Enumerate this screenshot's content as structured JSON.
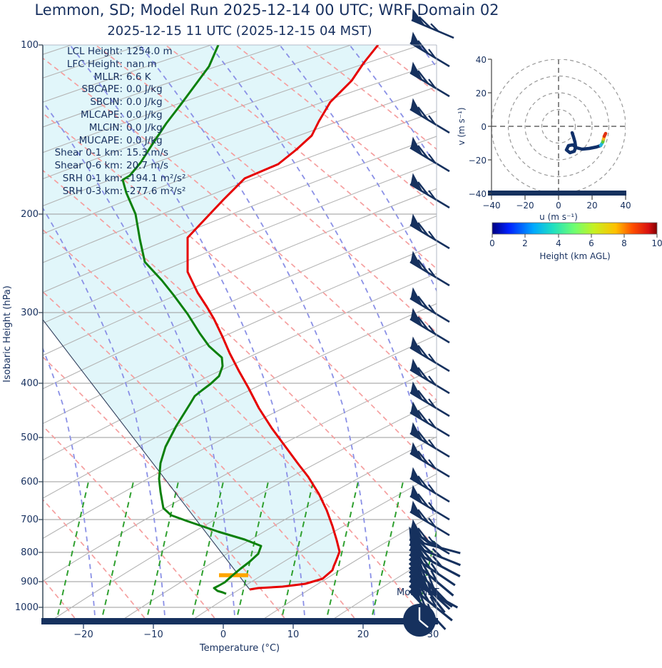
{
  "title": "Lemmon, SD; Model Run 2025-12-14 00 UTC; WRF Domain 02",
  "subtitle": "2025-12-15 11 UTC  (2025-12-15 04 MST)",
  "annotation_bottom_right": "Mon-MST",
  "colors": {
    "text_navy": "#17305f",
    "temperature_line": "#e60000",
    "dewpoint_line": "#0c800c",
    "parcel_line": "#33415e",
    "shaded_region": "#e1f6fa",
    "lcl_marker": "#ffa500",
    "dry_adiabat": "#f59f9f",
    "moist_adiabat": "#8a90e6",
    "mixing_ratio": "#2fa02f",
    "wind_barb": "#16315e"
  },
  "stats": {
    "rows": [
      {
        "label": "LCL Height:",
        "value": "1254.0 m"
      },
      {
        "label": "LFC Height:",
        "value": "nan m"
      },
      {
        "label": "MLLR:",
        "value": "6.6 K"
      },
      {
        "label": "SBCAPE:",
        "value": "0.0 J/kg"
      },
      {
        "label": "SBCIN:",
        "value": "0.0 J/kg"
      },
      {
        "label": "MLCAPE:",
        "value": "0.0 J/kg"
      },
      {
        "label": "MLCIN:",
        "value": "0.0 J/kg"
      },
      {
        "label": "MUCAPE:",
        "value": "0.0 J/kg"
      },
      {
        "label": "Shear 0-1 km:",
        "value": "15.3 m/s"
      },
      {
        "label": "Shear 0-6 km:",
        "value": "20.7 m/s"
      },
      {
        "label": "SRH 0-1 km:",
        "value": "-194.1 m²/s²"
      },
      {
        "label": "SRH 0-3 km:",
        "value": "-277.6 m²/s²"
      }
    ]
  },
  "skewt": {
    "ylabel": "Isobaric Height (hPa)",
    "xlabel": "Temperature (°C)",
    "pressure_ticks": [
      "100",
      "200",
      "300",
      "400",
      "500",
      "600",
      "700",
      "800",
      "900",
      "1000"
    ],
    "temp_ticks": [
      "−20",
      "−10",
      "0",
      "10",
      "20",
      "30"
    ]
  },
  "hodograph": {
    "xlabel": "u (m s⁻¹)",
    "ylabel": "v (m s⁻¹)",
    "xticks": [
      "−40",
      "−20",
      "0",
      "20",
      "40"
    ],
    "yticks": [
      "40",
      "20",
      "0",
      "−20",
      "−40"
    ],
    "colorbar": {
      "ticks": [
        "0",
        "2",
        "4",
        "6",
        "8",
        "10"
      ],
      "label": "Height (km AGL)"
    }
  },
  "chart_data": {
    "type": "skewt-sounding",
    "station": "Lemmon, SD",
    "model_run": "2025-12-14 00 UTC",
    "valid_time": "2025-12-15 11 UTC (2025-12-15 04 MST)",
    "pressure_axis_hPa": [
      100,
      1050
    ],
    "temperature_axis_C": [
      -25,
      30
    ],
    "profile": {
      "pressure_hPa": [
        925,
        900,
        850,
        800,
        700,
        600,
        500,
        400,
        300,
        250,
        200,
        150,
        100
      ],
      "temperature_C": [
        0.5,
        6.0,
        9.0,
        6.5,
        5.0,
        -1.0,
        -10.5,
        -20.0,
        -32.0,
        -39.0,
        -42.0,
        -35.0,
        -34.0
      ],
      "dewpoint_C": [
        -3.0,
        -4.0,
        -2.5,
        -12.0,
        -16.5,
        -23.0,
        -26.0,
        -25.0,
        -35.5,
        -44.0,
        -52.0,
        -57.0,
        -57.0
      ]
    },
    "lcl": {
      "height_m_agl": 1254.0,
      "approx_pressure_hPa": 877
    },
    "wind_note": "Pennant-and-feather barbs (~25 m/s, WSW) at all levels; dense fanned cluster 750-925 hPa",
    "hodograph": {
      "height_km": [
        0,
        0.5,
        1,
        1.5,
        2,
        2.5,
        3,
        4,
        5,
        6,
        7,
        8,
        9,
        10
      ],
      "u_ms": [
        8,
        9,
        10,
        10,
        9.5,
        8.5,
        7,
        9,
        11,
        16,
        22,
        26,
        27,
        28
      ],
      "v_ms": [
        -4,
        -6,
        -9,
        -12,
        -14,
        -15,
        -14,
        -13,
        -13,
        -13,
        -12,
        -11,
        -9,
        -6
      ],
      "axis_range_ms": [
        -40,
        40
      ],
      "ring_interval_ms": 10
    },
    "pixel_paths": {
      "temperature": [
        [
          530,
          63
        ],
        [
          510,
          88
        ],
        [
          493,
          113
        ],
        [
          463,
          143
        ],
        [
          447,
          170
        ],
        [
          437,
          190
        ],
        [
          415,
          210
        ],
        [
          390,
          230
        ],
        [
          343,
          250
        ],
        [
          313,
          280
        ],
        [
          263,
          333
        ],
        [
          263,
          381
        ],
        [
          277,
          410
        ],
        [
          290,
          430
        ],
        [
          300,
          447
        ],
        [
          312,
          472
        ],
        [
          322,
          495
        ],
        [
          335,
          520
        ],
        [
          348,
          543
        ],
        [
          363,
          572
        ],
        [
          381,
          600
        ],
        [
          401,
          627
        ],
        [
          418,
          650
        ],
        [
          432,
          668
        ],
        [
          447,
          692
        ],
        [
          458,
          715
        ],
        [
          466,
          737
        ],
        [
          472,
          757
        ],
        [
          476,
          773
        ],
        [
          471,
          786
        ],
        [
          468,
          793
        ],
        [
          466,
          799
        ],
        [
          452,
          811
        ],
        [
          428,
          818
        ],
        [
          396,
          822
        ],
        [
          362,
          824
        ],
        [
          350,
          826
        ]
      ],
      "dewpoint": [
        [
          306,
          63
        ],
        [
          293,
          93
        ],
        [
          273,
          120
        ],
        [
          253,
          147
        ],
        [
          233,
          173
        ],
        [
          213,
          203
        ],
        [
          197,
          228
        ],
        [
          182,
          246
        ],
        [
          172,
          252
        ],
        [
          177,
          270
        ],
        [
          190,
          300
        ],
        [
          196,
          335
        ],
        [
          203,
          367
        ],
        [
          227,
          393
        ],
        [
          243,
          413
        ],
        [
          263,
          440
        ],
        [
          280,
          467
        ],
        [
          293,
          485
        ],
        [
          303,
          494
        ],
        [
          311,
          501
        ],
        [
          312,
          513
        ],
        [
          307,
          527
        ],
        [
          295,
          538
        ],
        [
          283,
          547
        ],
        [
          273,
          555
        ],
        [
          267,
          565
        ],
        [
          247,
          597
        ],
        [
          232,
          626
        ],
        [
          225,
          649
        ],
        [
          223,
          671
        ],
        [
          225,
          689
        ],
        [
          229,
          712
        ],
        [
          240,
          722
        ],
        [
          262,
          730
        ],
        [
          306,
          745
        ],
        [
          343,
          756
        ],
        [
          366,
          765
        ],
        [
          362,
          776
        ],
        [
          350,
          787
        ],
        [
          337,
          797
        ],
        [
          325,
          807
        ],
        [
          315,
          816
        ],
        [
          306,
          821
        ],
        [
          300,
          824
        ],
        [
          305,
          828
        ],
        [
          312,
          830
        ],
        [
          317,
          832
        ]
      ],
      "parcel": [
        [
          350,
          826
        ],
        [
          60,
          448
        ]
      ],
      "lcl_bar": [
        [
          307,
          806
        ],
        [
          348,
          806
        ]
      ],
      "hodograph_trace": [
        [
          802,
          186
        ],
        [
          804,
          192
        ],
        [
          806,
          199
        ],
        [
          807,
          206
        ],
        [
          805,
          212
        ],
        [
          799,
          214
        ],
        [
          794,
          210
        ],
        [
          797,
          204
        ],
        [
          803,
          203
        ],
        [
          808,
          207
        ],
        [
          816,
          209
        ],
        [
          826,
          208
        ],
        [
          836,
          206
        ],
        [
          842,
          204
        ]
      ],
      "hodograph_tip_segments": [
        {
          "x1": 842,
          "y1": 204,
          "x2": 845,
          "y2": 199,
          "color": "#23b5d8"
        },
        {
          "x1": 845,
          "y1": 199,
          "x2": 846,
          "y2": 195,
          "color": "#5ec936"
        },
        {
          "x1": 846,
          "y1": 195,
          "x2": 847,
          "y2": 191,
          "color": "#f2b41f"
        },
        {
          "x1": 847,
          "y1": 191,
          "x2": 849,
          "y2": 187,
          "color": "#e03010"
        }
      ],
      "barb_levels_y": [
        60,
        102,
        153,
        207,
        258,
        315,
        367,
        418,
        447,
        487,
        518,
        550,
        578,
        607,
        635,
        670,
        695,
        717,
        743
      ],
      "barb_cluster": [
        {
          "y": 756,
          "rot": -16,
          "s": 1.15
        },
        {
          "y": 763,
          "rot": -9,
          "s": 1.2
        },
        {
          "y": 770,
          "rot": -3,
          "s": 1.25
        },
        {
          "y": 777,
          "rot": 3,
          "s": 1.2
        },
        {
          "y": 783,
          "rot": 9,
          "s": 1.25
        },
        {
          "y": 789,
          "rot": 15,
          "s": 1.2
        },
        {
          "y": 795,
          "rot": 21,
          "s": 1.25
        },
        {
          "y": 801,
          "rot": 12,
          "s": 1.2
        },
        {
          "y": 807,
          "rot": 5,
          "s": 1.15
        },
        {
          "y": 814,
          "rot": -2,
          "s": 1.2
        },
        {
          "y": 821,
          "rot": 8,
          "s": 1.2
        },
        {
          "y": 828,
          "rot": 16,
          "s": 1.15
        }
      ]
    }
  }
}
